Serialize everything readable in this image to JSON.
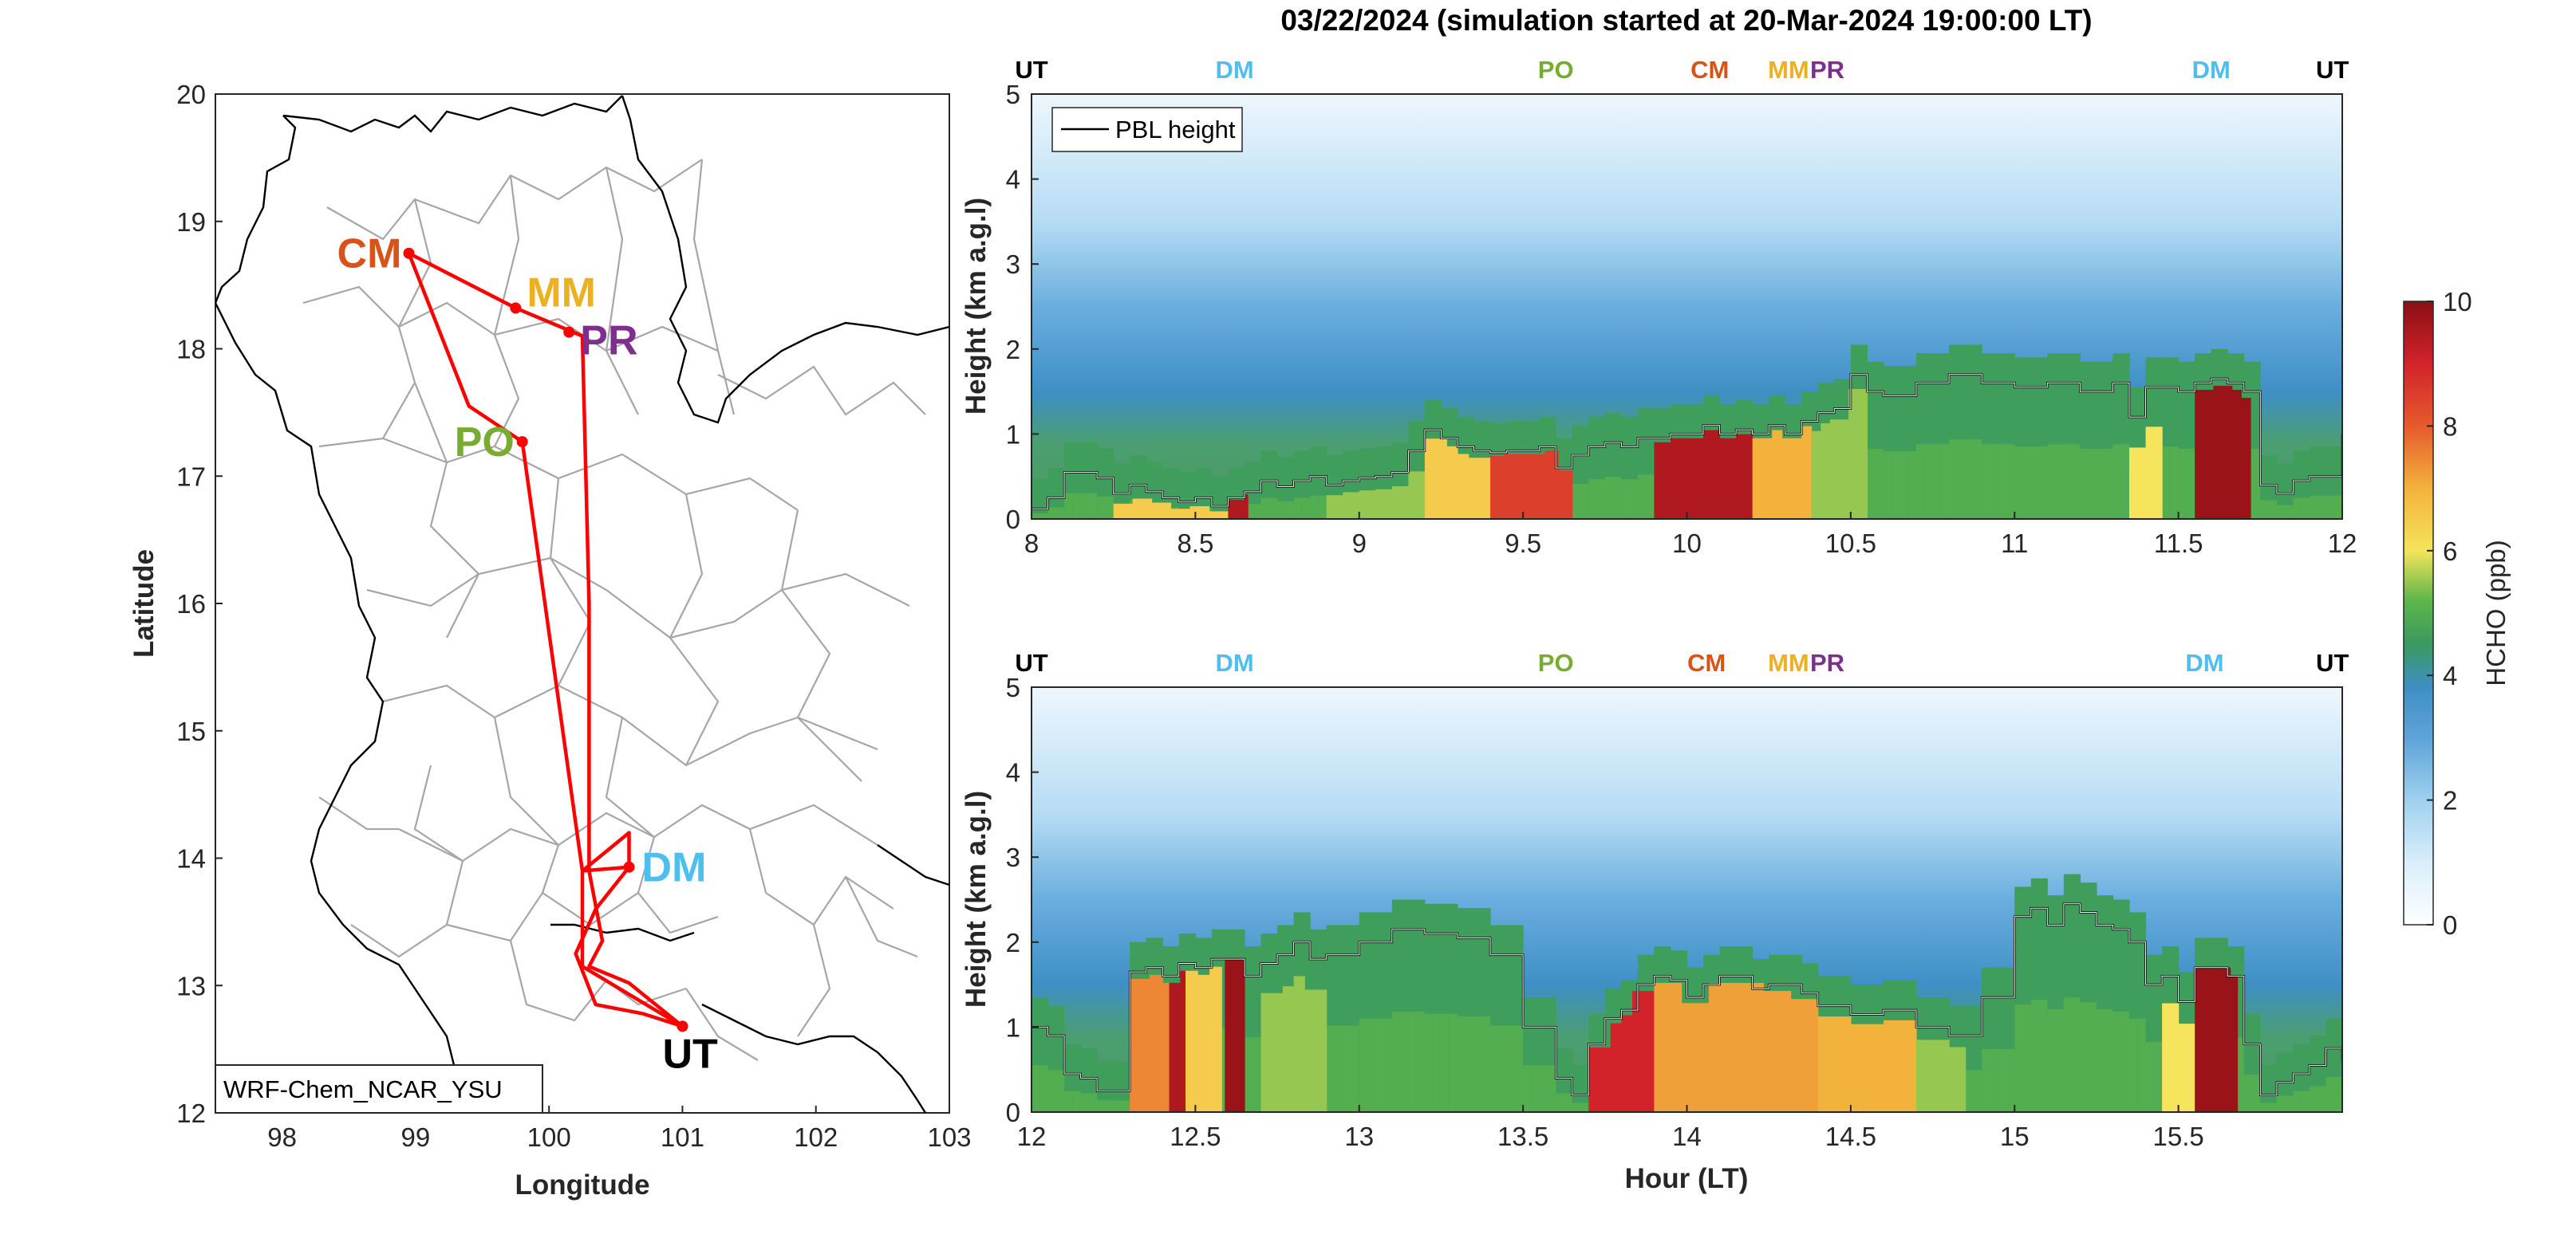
{
  "figure_title": "03/22/2024 (simulation started at 20-Mar-2024 19:00:00 LT)",
  "colors": {
    "UT": "#000000",
    "DM": "#4DBEEE",
    "PO": "#77AC30",
    "CM": "#D95319",
    "MM": "#EDB120",
    "PR": "#7E2F8E",
    "route": "#FF0000",
    "boundary": "#A6A6A6",
    "coast": "#000000"
  },
  "chart_data": [
    {
      "type": "map",
      "xlabel": "Longitude",
      "ylabel": "Latitude",
      "xlim": [
        97.5,
        103
      ],
      "ylim": [
        12,
        20
      ],
      "xticks": [
        98,
        99,
        100,
        101,
        102,
        103
      ],
      "yticks": [
        12,
        13,
        14,
        15,
        16,
        17,
        18,
        19,
        20
      ],
      "model_label": "WRF-Chem_NCAR_YSU",
      "sites": [
        {
          "name": "CM",
          "lon": 98.95,
          "lat": 18.75
        },
        {
          "name": "MM",
          "lon": 99.75,
          "lat": 18.32
        },
        {
          "name": "PR",
          "lon": 100.15,
          "lat": 18.13
        },
        {
          "name": "PO",
          "lon": 99.8,
          "lat": 17.27
        },
        {
          "name": "DM",
          "lon": 100.6,
          "lat": 13.93
        },
        {
          "name": "UT",
          "lon": 101.0,
          "lat": 12.68
        }
      ],
      "route": [
        [
          101.0,
          12.68
        ],
        [
          100.25,
          13.15
        ],
        [
          100.25,
          13.9
        ],
        [
          100.6,
          14.2
        ],
        [
          100.6,
          13.93
        ],
        [
          100.35,
          13.6
        ],
        [
          100.2,
          13.25
        ],
        [
          100.35,
          12.85
        ],
        [
          100.7,
          12.78
        ],
        [
          101.0,
          12.68
        ],
        [
          100.6,
          13.02
        ],
        [
          100.3,
          13.15
        ],
        [
          100.4,
          13.35
        ],
        [
          100.3,
          13.9
        ],
        [
          100.3,
          16.0
        ],
        [
          100.25,
          18.1
        ],
        [
          99.75,
          18.32
        ],
        [
          98.95,
          18.75
        ],
        [
          99.4,
          17.55
        ],
        [
          99.8,
          17.27
        ],
        [
          100.25,
          13.9
        ],
        [
          100.6,
          13.93
        ]
      ]
    },
    {
      "type": "heatmap",
      "ylabel": "Height (km a.g.l)",
      "xlim": [
        8,
        12
      ],
      "ylim": [
        0,
        5
      ],
      "xticks": [
        8,
        8.5,
        9,
        9.5,
        10,
        10.5,
        11,
        11.5,
        12
      ],
      "yticks": [
        0,
        1,
        2,
        3,
        4,
        5
      ],
      "legend": "PBL height",
      "site_markers": [
        {
          "name": "UT",
          "x": 8.0
        },
        {
          "name": "DM",
          "x": 8.62
        },
        {
          "name": "PO",
          "x": 9.6
        },
        {
          "name": "CM",
          "x": 10.07
        },
        {
          "name": "MM",
          "x": 10.3
        },
        {
          "name": "PR",
          "x": 10.42
        },
        {
          "name": "DM",
          "x": 11.6
        },
        {
          "name": "UT",
          "x": 11.97
        }
      ],
      "pbl_height": {
        "x": [
          8.0,
          8.05,
          8.1,
          8.2,
          8.25,
          8.3,
          8.35,
          8.4,
          8.45,
          8.5,
          8.55,
          8.6,
          8.65,
          8.7,
          8.75,
          8.8,
          8.85,
          8.9,
          8.95,
          9.0,
          9.05,
          9.1,
          9.15,
          9.2,
          9.25,
          9.3,
          9.35,
          9.4,
          9.45,
          9.5,
          9.55,
          9.6,
          9.65,
          9.7,
          9.75,
          9.8,
          9.85,
          9.9,
          9.95,
          10.0,
          10.05,
          10.1,
          10.15,
          10.2,
          10.25,
          10.3,
          10.35,
          10.4,
          10.45,
          10.5,
          10.55,
          10.6,
          10.7,
          10.8,
          10.9,
          11.0,
          11.05,
          11.1,
          11.2,
          11.3,
          11.35,
          11.4,
          11.5,
          11.55,
          11.6,
          11.65,
          11.7,
          11.75,
          11.8,
          11.85,
          11.9,
          11.95,
          12.0
        ],
        "y": [
          0.12,
          0.25,
          0.55,
          0.48,
          0.3,
          0.4,
          0.32,
          0.25,
          0.2,
          0.25,
          0.15,
          0.25,
          0.32,
          0.45,
          0.38,
          0.45,
          0.5,
          0.4,
          0.45,
          0.48,
          0.5,
          0.55,
          0.8,
          1.05,
          0.95,
          0.85,
          0.8,
          0.78,
          0.8,
          0.8,
          0.85,
          0.6,
          0.75,
          0.85,
          0.9,
          0.85,
          0.95,
          0.95,
          1.0,
          1.0,
          1.1,
          1.0,
          1.05,
          1.0,
          1.1,
          1.0,
          1.15,
          1.25,
          1.3,
          1.7,
          1.5,
          1.45,
          1.6,
          1.7,
          1.6,
          1.55,
          1.55,
          1.6,
          1.5,
          1.6,
          1.2,
          1.55,
          1.5,
          1.6,
          1.65,
          1.6,
          1.5,
          0.4,
          0.3,
          0.45,
          0.5,
          0.5,
          1.0
        ]
      },
      "hcho_bands": [
        {
          "x0": 8.25,
          "x1": 8.6,
          "top_frac": 0.6,
          "value": 6.5
        },
        {
          "x0": 8.6,
          "x1": 8.66,
          "top_frac": 0.9,
          "value": 9.5
        },
        {
          "x0": 8.9,
          "x1": 9.2,
          "top_frac": 0.7,
          "value": 5.5
        },
        {
          "x0": 9.2,
          "x1": 9.4,
          "top_frac": 0.9,
          "value": 6.5
        },
        {
          "x0": 9.4,
          "x1": 9.65,
          "top_frac": 0.95,
          "value": 8.5
        },
        {
          "x0": 9.9,
          "x1": 10.2,
          "top_frac": 0.95,
          "value": 9.5
        },
        {
          "x0": 10.2,
          "x1": 10.38,
          "top_frac": 0.95,
          "value": 7.0
        },
        {
          "x0": 10.38,
          "x1": 10.55,
          "top_frac": 0.9,
          "value": 5.5
        },
        {
          "x0": 11.35,
          "x1": 11.45,
          "top_frac": 0.7,
          "value": 6.0
        },
        {
          "x0": 11.55,
          "x1": 11.72,
          "top_frac": 0.95,
          "value": 9.8
        }
      ]
    },
    {
      "type": "heatmap",
      "xlabel": "Hour (LT)",
      "ylabel": "Height (km a.g.l)",
      "xlim": [
        12,
        16
      ],
      "ylim": [
        0,
        5
      ],
      "xticks": [
        12,
        12.5,
        13,
        13.5,
        14,
        14.5,
        15,
        15.5
      ],
      "yticks": [
        0,
        1,
        2,
        3,
        4,
        5
      ],
      "site_markers": [
        {
          "name": "UT",
          "x": 12.0
        },
        {
          "name": "DM",
          "x": 12.62
        },
        {
          "name": "PO",
          "x": 13.6
        },
        {
          "name": "CM",
          "x": 14.06
        },
        {
          "name": "MM",
          "x": 14.3
        },
        {
          "name": "PR",
          "x": 14.42
        },
        {
          "name": "DM",
          "x": 15.58
        },
        {
          "name": "UT",
          "x": 15.97
        }
      ],
      "pbl_height": {
        "x": [
          12.0,
          12.05,
          12.1,
          12.15,
          12.2,
          12.25,
          12.3,
          12.35,
          12.4,
          12.45,
          12.5,
          12.55,
          12.6,
          12.65,
          12.7,
          12.75,
          12.8,
          12.85,
          12.9,
          13.0,
          13.1,
          13.2,
          13.3,
          13.4,
          13.5,
          13.55,
          13.6,
          13.65,
          13.7,
          13.75,
          13.8,
          13.85,
          13.9,
          13.95,
          14.0,
          14.05,
          14.1,
          14.15,
          14.2,
          14.25,
          14.3,
          14.35,
          14.4,
          14.5,
          14.6,
          14.7,
          14.8,
          14.9,
          15.0,
          15.05,
          15.1,
          15.15,
          15.2,
          15.25,
          15.3,
          15.35,
          15.4,
          15.45,
          15.5,
          15.55,
          15.6,
          15.65,
          15.7,
          15.75,
          15.8,
          15.85,
          15.9,
          15.95,
          16.0
        ],
        "y": [
          1.0,
          0.9,
          0.45,
          0.4,
          0.25,
          0.25,
          1.65,
          1.7,
          1.6,
          1.75,
          1.7,
          1.8,
          1.8,
          1.6,
          1.75,
          1.85,
          2.0,
          1.8,
          1.85,
          2.0,
          2.15,
          2.1,
          2.05,
          1.85,
          1.0,
          1.0,
          0.4,
          0.2,
          0.8,
          1.1,
          1.2,
          1.5,
          1.6,
          1.55,
          1.35,
          1.5,
          1.6,
          1.6,
          1.45,
          1.5,
          1.5,
          1.4,
          1.25,
          1.15,
          1.2,
          1.0,
          0.9,
          1.35,
          2.3,
          2.4,
          2.2,
          2.45,
          2.35,
          2.2,
          2.15,
          2.0,
          1.5,
          1.6,
          1.3,
          1.7,
          1.7,
          1.6,
          0.8,
          0.2,
          0.35,
          0.45,
          0.55,
          0.75,
          0.6
        ]
      },
      "hcho_bands": [
        {
          "x0": 12.3,
          "x1": 12.42,
          "top_frac": 0.95,
          "value": 7.5
        },
        {
          "x0": 12.42,
          "x1": 12.47,
          "top_frac": 0.95,
          "value": 9.5
        },
        {
          "x0": 12.47,
          "x1": 12.58,
          "top_frac": 0.95,
          "value": 6.5
        },
        {
          "x0": 12.59,
          "x1": 12.65,
          "top_frac": 1.0,
          "value": 9.8
        },
        {
          "x0": 12.7,
          "x1": 12.9,
          "top_frac": 0.8,
          "value": 5.5
        },
        {
          "x0": 13.7,
          "x1": 13.9,
          "top_frac": 0.95,
          "value": 9.0
        },
        {
          "x0": 13.9,
          "x1": 14.4,
          "top_frac": 0.95,
          "value": 7.2
        },
        {
          "x0": 14.4,
          "x1": 14.7,
          "top_frac": 0.9,
          "value": 7.0
        },
        {
          "x0": 14.7,
          "x1": 14.85,
          "top_frac": 0.85,
          "value": 5.5
        },
        {
          "x0": 15.45,
          "x1": 15.55,
          "top_frac": 0.8,
          "value": 6.0
        },
        {
          "x0": 15.55,
          "x1": 15.68,
          "top_frac": 1.0,
          "value": 9.8
        }
      ]
    },
    {
      "type": "colorbar",
      "label": "HCHO (ppb)",
      "range": [
        0,
        10
      ],
      "ticks": [
        0,
        2,
        4,
        6,
        8,
        10
      ]
    }
  ]
}
